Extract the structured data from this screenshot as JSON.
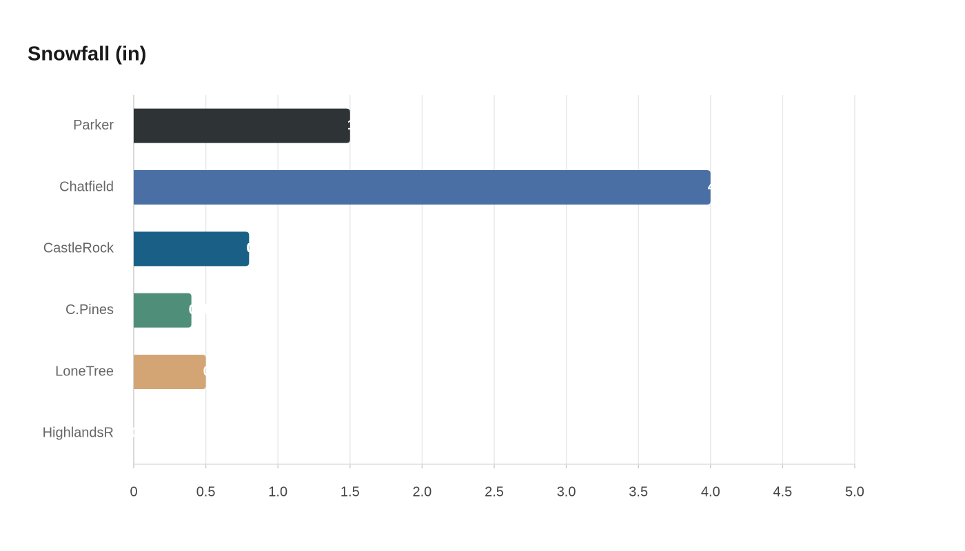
{
  "chart_data": {
    "type": "bar",
    "orientation": "horizontal",
    "title": "Snowfall (in)",
    "categories": [
      "Parker",
      "Chatfield",
      "CastleRock",
      "C.Pines",
      "LoneTree",
      "HighlandsR"
    ],
    "values": [
      1.5,
      4,
      0.8,
      0.4,
      0.5,
      0
    ],
    "colors": [
      "#2e3436",
      "#4a6fa5",
      "#1a5f85",
      "#4f8f7a",
      "#d4a574",
      "#8c8c8c"
    ],
    "xlim": [
      0,
      5
    ],
    "xticks": [
      0,
      0.5,
      {
        "value": 1,
        "label": "1.0"
      },
      1.5,
      {
        "value": 2,
        "label": "2.0"
      },
      2.5,
      {
        "value": 3,
        "label": "3.0"
      },
      3.5,
      {
        "value": 4,
        "label": "4.0"
      },
      4.5,
      {
        "value": 5,
        "label": "5.0"
      }
    ],
    "grid": true
  }
}
